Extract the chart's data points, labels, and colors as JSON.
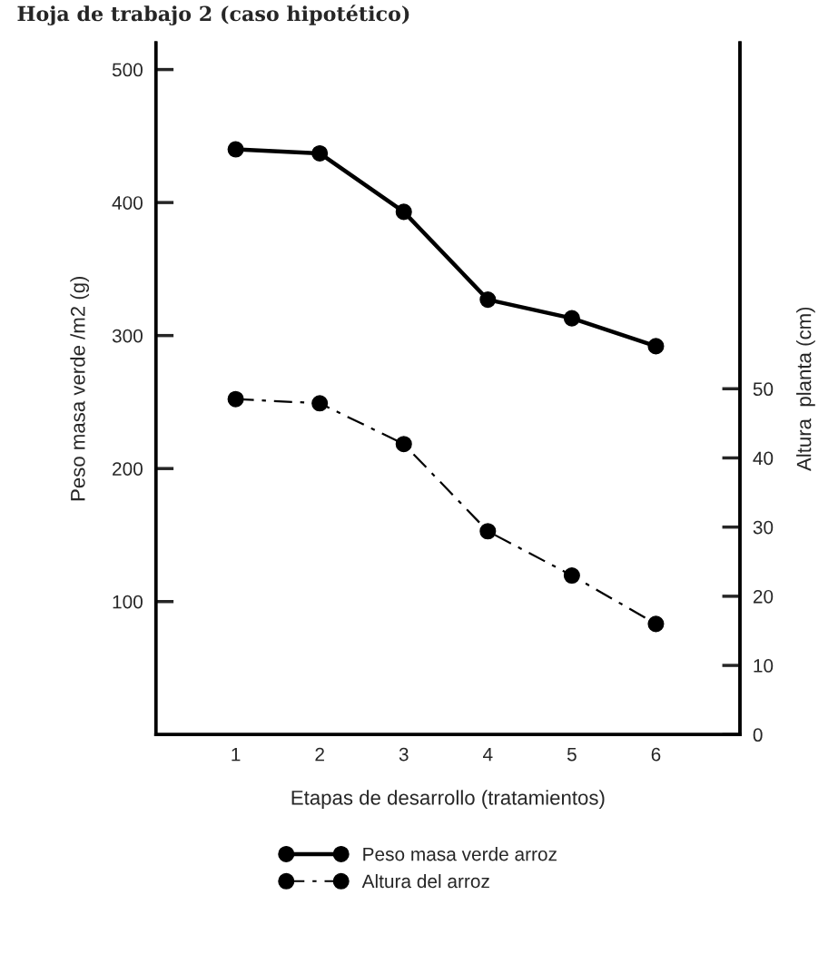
{
  "chart_data": {
    "type": "line",
    "title": "Hoja de trabajo 2 (caso hipotético)",
    "xlabel": "Etapas de desarrollo (tratamientos)",
    "ylabel": "Peso masa verde /m2 (g)",
    "y2label": "Altura  planta (cm)",
    "x": [
      1,
      2,
      3,
      4,
      5,
      6
    ],
    "series": [
      {
        "name": "Peso masa verde arroz",
        "color": "#000000",
        "values": [
          440,
          437,
          393,
          327,
          313,
          292
        ],
        "line_style": "solid"
      },
      {
        "name": "Altura del arroz",
        "color": "#000000",
        "values": [
          48.5,
          47.9,
          42,
          29.4,
          23,
          16
        ],
        "axis": "y2",
        "line_style": "dashdot"
      }
    ],
    "xlim": [
      0.05,
      7
    ],
    "xticks": [
      1,
      2,
      3,
      4,
      5,
      6
    ],
    "ylim": [
      0,
      520
    ],
    "yticks": [
      100,
      200,
      300,
      400,
      500
    ],
    "y2lim": [
      0,
      100
    ],
    "y2ticks": [
      0,
      10,
      20,
      30,
      40,
      50
    ],
    "marker": "circle",
    "grid": false,
    "legend": "bottom"
  }
}
